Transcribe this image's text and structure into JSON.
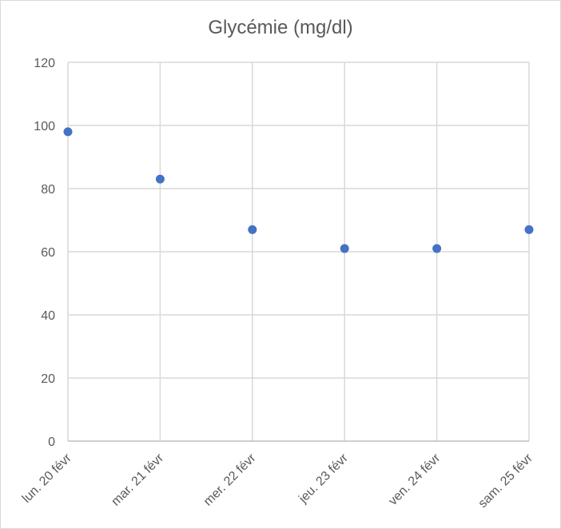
{
  "chart_data": {
    "type": "scatter",
    "title": "Glycémie (mg/dl)",
    "xlabel": "",
    "ylabel": "",
    "categories": [
      "lun. 20 févr",
      "mar. 21 févr",
      "mer. 22 févr",
      "jeu. 23 févr",
      "ven. 24 févr",
      "sam. 25 févr"
    ],
    "series": [
      {
        "values": [
          98,
          83,
          67,
          61,
          61,
          67
        ],
        "color": "#4472c4"
      }
    ],
    "ylim": [
      0,
      120
    ],
    "yticks": [
      "0",
      "20",
      "40",
      "60",
      "80",
      "100",
      "120"
    ],
    "grid": true,
    "legend": "none"
  }
}
